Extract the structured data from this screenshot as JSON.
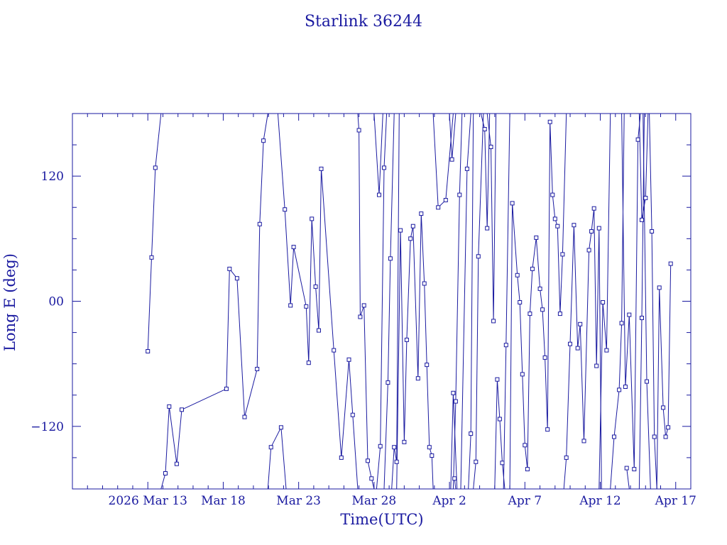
{
  "chart_data": {
    "type": "line",
    "title": "Starlink 36244",
    "xlabel": "Time(UTC)",
    "ylabel": "Long E (deg)",
    "x_tick_labels": [
      "2026 Mar 13",
      "Mar 18",
      "Mar 23",
      "Mar 28",
      "Apr  2",
      "Apr  7",
      "Apr 12",
      "Apr 17"
    ],
    "x_tick_dates": [
      "2026-03-13",
      "2026-03-18",
      "2026-03-23",
      "2026-03-28",
      "2026-04-02",
      "2026-04-07",
      "2026-04-12",
      "2026-04-17"
    ],
    "xlim": [
      "2026-03-08T00:00",
      "2026-04-18T00:00"
    ],
    "y_tick_labels": [
      "120",
      "00",
      "−120"
    ],
    "y_tick_values": [
      120,
      0,
      -120
    ],
    "ylim": [
      -180,
      180
    ],
    "grid": false,
    "markers": "square",
    "series_color": "#1a1aa0",
    "series": [
      {
        "values": [
          [
            "2026-03-13T00:00",
            -48
          ],
          [
            "2026-03-13T06:00",
            42
          ],
          [
            "2026-03-13T12:00",
            128
          ],
          [
            "2026-03-13T21:00",
            180
          ],
          null,
          [
            "2026-03-13T21:00",
            -180
          ],
          [
            "2026-03-14T04:00",
            -165
          ],
          [
            "2026-03-14T10:00",
            -101
          ],
          [
            "2026-03-14T22:00",
            -156
          ],
          [
            "2026-03-15T06:00",
            -104
          ],
          [
            "2026-03-18T05:00",
            -84
          ],
          [
            "2026-03-18T10:00",
            31
          ],
          [
            "2026-03-18T22:00",
            22
          ],
          [
            "2026-03-19T10:00",
            -111
          ],
          [
            "2026-03-20T06:00",
            -65
          ],
          [
            "2026-03-20T10:00",
            74
          ],
          [
            "2026-03-20T16:00",
            154
          ],
          [
            "2026-03-20T23:00",
            180
          ],
          null,
          [
            "2026-03-20T23:00",
            -180
          ],
          [
            "2026-03-21T04:00",
            -140
          ],
          [
            "2026-03-21T20:00",
            -121
          ],
          [
            "2026-03-22T04:00",
            -180
          ],
          null,
          [
            "2026-03-21T15:00",
            180
          ],
          [
            "2026-03-22T02:00",
            88
          ],
          [
            "2026-03-22T11:00",
            -4
          ],
          [
            "2026-03-22T16:00",
            52
          ],
          [
            "2026-03-23T12:00",
            -5
          ],
          [
            "2026-03-23T16:00",
            -59
          ],
          [
            "2026-03-23T21:00",
            79
          ],
          [
            "2026-03-24T03:00",
            14
          ],
          [
            "2026-03-24T08:00",
            -28
          ],
          [
            "2026-03-24T12:00",
            127
          ],
          [
            "2026-03-25T08:00",
            -47
          ],
          [
            "2026-03-25T20:00",
            -150
          ],
          [
            "2026-03-26T08:00",
            -56
          ],
          [
            "2026-03-26T14:00",
            -109
          ],
          [
            "2026-03-26T22:00",
            -180
          ],
          null,
          [
            "2026-03-26T22:00",
            180
          ],
          [
            "2026-03-27T00:00",
            164
          ],
          [
            "2026-03-27T02:00",
            -15
          ],
          [
            "2026-03-27T08:00",
            -4
          ],
          [
            "2026-03-27T14:00",
            -153
          ],
          [
            "2026-03-27T20:00",
            -170
          ],
          [
            "2026-03-28T00:00",
            -180
          ],
          null,
          [
            "2026-03-28T00:00",
            180
          ],
          [
            "2026-03-28T08:00",
            102
          ],
          [
            "2026-03-28T14:00",
            180
          ],
          null,
          [
            "2026-03-28T04:00",
            -180
          ],
          [
            "2026-03-28T10:00",
            -139
          ],
          [
            "2026-03-28T16:00",
            128
          ],
          [
            "2026-03-28T20:00",
            180
          ],
          null,
          [
            "2026-03-28T16:00",
            -180
          ],
          [
            "2026-03-28T22:00",
            -78
          ],
          [
            "2026-03-29T02:00",
            41
          ],
          [
            "2026-03-29T08:00",
            180
          ],
          null,
          [
            "2026-03-29T04:00",
            -180
          ],
          [
            "2026-03-29T08:00",
            -140
          ],
          [
            "2026-03-29T12:00",
            -154
          ],
          [
            "2026-03-29T16:00",
            180
          ],
          null,
          [
            "2026-03-29T12:00",
            -180
          ],
          [
            "2026-03-29T18:00",
            68
          ],
          [
            "2026-03-30T00:00",
            -135
          ],
          [
            "2026-03-30T04:00",
            -37
          ],
          [
            "2026-03-30T10:00",
            60
          ],
          [
            "2026-03-30T14:00",
            72
          ],
          [
            "2026-03-30T22:00",
            -74
          ],
          [
            "2026-03-31T03:00",
            84
          ],
          [
            "2026-03-31T08:00",
            17
          ],
          [
            "2026-03-31T12:00",
            -61
          ],
          [
            "2026-03-31T16:00",
            -140
          ],
          [
            "2026-03-31T20:00",
            -148
          ],
          [
            "2026-03-31T22:00",
            -180
          ],
          null,
          [
            "2026-03-31T22:00",
            180
          ],
          [
            "2026-04-01T06:00",
            90
          ],
          [
            "2026-04-01T18:00",
            97
          ],
          [
            "2026-04-02T06:00",
            180
          ],
          null,
          [
            "2026-04-02T02:00",
            -180
          ],
          [
            "2026-04-02T06:00",
            -88
          ],
          [
            "2026-04-02T12:00",
            -180
          ],
          null,
          [
            "2026-04-02T08:00",
            -170
          ],
          [
            "2026-04-02T10:00",
            -180
          ],
          null,
          [
            "2026-04-02T00:00",
            180
          ],
          [
            "2026-04-02T04:00",
            136
          ],
          [
            "2026-04-02T10:00",
            180
          ],
          null,
          [
            "2026-04-02T06:00",
            -180
          ],
          [
            "2026-04-02T10:00",
            -96
          ],
          [
            "2026-04-02T16:00",
            102
          ],
          [
            "2026-04-02T20:00",
            180
          ],
          null,
          [
            "2026-04-02T18:00",
            -180
          ],
          [
            "2026-04-03T04:00",
            127
          ],
          [
            "2026-04-03T10:00",
            180
          ],
          null,
          [
            "2026-04-03T06:00",
            -180
          ],
          [
            "2026-04-03T10:00",
            -127
          ],
          [
            "2026-04-03T14:00",
            180
          ],
          null,
          [
            "2026-04-03T14:00",
            -180
          ],
          [
            "2026-04-03T18:00",
            -154
          ],
          [
            "2026-04-03T22:00",
            43
          ],
          [
            "2026-04-04T06:00",
            180
          ],
          null,
          [
            "2026-04-04T02:00",
            180
          ],
          [
            "2026-04-04T08:00",
            165
          ],
          [
            "2026-04-04T12:00",
            70
          ],
          [
            "2026-04-04T16:00",
            180
          ],
          null,
          [
            "2026-04-04T12:00",
            180
          ],
          [
            "2026-04-04T18:00",
            148
          ],
          [
            "2026-04-04T22:00",
            -19
          ],
          [
            "2026-04-05T02:00",
            180
          ],
          null,
          [
            "2026-04-05T00:00",
            -180
          ],
          [
            "2026-04-05T04:00",
            -75
          ],
          [
            "2026-04-05T08:00",
            -113
          ],
          [
            "2026-04-05T12:00",
            -155
          ],
          [
            "2026-04-05T16:00",
            -180
          ],
          null,
          [
            "2026-04-05T14:00",
            -180
          ],
          [
            "2026-04-05T18:00",
            -42
          ],
          [
            "2026-04-06T00:00",
            180
          ],
          null,
          [
            "2026-04-06T00:00",
            -180
          ],
          [
            "2026-04-06T04:00",
            94
          ],
          [
            "2026-04-06T12:00",
            25
          ],
          [
            "2026-04-06T16:00",
            -1
          ],
          [
            "2026-04-06T20:00",
            -70
          ],
          [
            "2026-04-07T00:00",
            -138
          ],
          [
            "2026-04-07T04:00",
            -161
          ],
          [
            "2026-04-07T08:00",
            -12
          ],
          [
            "2026-04-07T12:00",
            31
          ],
          [
            "2026-04-07T18:00",
            61
          ],
          [
            "2026-04-08T00:00",
            12
          ],
          [
            "2026-04-08T04:00",
            -8
          ],
          [
            "2026-04-08T08:00",
            -54
          ],
          [
            "2026-04-08T12:00",
            -123
          ],
          [
            "2026-04-08T16:00",
            172
          ],
          [
            "2026-04-08T20:00",
            102
          ],
          [
            "2026-04-09T00:00",
            79
          ],
          [
            "2026-04-09T04:00",
            72
          ],
          [
            "2026-04-09T08:00",
            -12
          ],
          [
            "2026-04-09T12:00",
            45
          ],
          [
            "2026-04-09T18:00",
            180
          ],
          null,
          [
            "2026-04-09T14:00",
            -180
          ],
          [
            "2026-04-09T18:00",
            -150
          ],
          [
            "2026-04-10T00:00",
            -41
          ],
          [
            "2026-04-10T06:00",
            73
          ],
          [
            "2026-04-10T12:00",
            -45
          ],
          [
            "2026-04-10T16:00",
            -22
          ],
          [
            "2026-04-10T22:00",
            -134
          ],
          [
            "2026-04-11T06:00",
            49
          ],
          [
            "2026-04-11T10:00",
            67
          ],
          [
            "2026-04-11T14:00",
            89
          ],
          [
            "2026-04-11T18:00",
            -62
          ],
          [
            "2026-04-11T22:00",
            70
          ],
          [
            "2026-04-12T02:00",
            -180
          ],
          null,
          [
            "2026-04-11T22:00",
            -180
          ],
          [
            "2026-04-12T04:00",
            -1
          ],
          [
            "2026-04-12T10:00",
            -47
          ],
          [
            "2026-04-12T16:00",
            180
          ],
          null,
          [
            "2026-04-12T16:00",
            -180
          ],
          [
            "2026-04-12T22:00",
            -130
          ],
          [
            "2026-04-13T06:00",
            -85
          ],
          [
            "2026-04-13T10:00",
            -21
          ],
          [
            "2026-04-13T14:00",
            180
          ],
          null,
          [
            "2026-04-13T18:00",
            -160
          ],
          [
            "2026-04-13T22:00",
            -180
          ],
          null,
          [
            "2026-04-13T10:00",
            180
          ],
          [
            "2026-04-13T16:00",
            -82
          ],
          [
            "2026-04-13T22:00",
            -13
          ],
          [
            "2026-04-14T06:00",
            -161
          ],
          [
            "2026-04-14T12:00",
            155
          ],
          [
            "2026-04-14T16:00",
            180
          ],
          null,
          [
            "2026-04-14T14:00",
            -180
          ],
          [
            "2026-04-14T18:00",
            -16
          ],
          [
            "2026-04-14T22:00",
            180
          ],
          null,
          [
            "2026-04-14T14:00",
            180
          ],
          [
            "2026-04-14T18:00",
            78
          ],
          [
            "2026-04-15T00:00",
            99
          ],
          [
            "2026-04-15T04:00",
            180
          ],
          null,
          [
            "2026-04-14T20:00",
            180
          ],
          [
            "2026-04-15T02:00",
            -77
          ],
          [
            "2026-04-15T08:00",
            -180
          ],
          null,
          [
            "2026-04-15T06:00",
            180
          ],
          [
            "2026-04-15T10:00",
            67
          ],
          [
            "2026-04-15T14:00",
            -130
          ],
          [
            "2026-04-15T18:00",
            -180
          ],
          null,
          [
            "2026-04-15T18:00",
            -180
          ],
          [
            "2026-04-15T22:00",
            13
          ],
          [
            "2026-04-16T04:00",
            -102
          ],
          [
            "2026-04-16T08:00",
            -130
          ],
          [
            "2026-04-16T12:00",
            -121
          ],
          [
            "2026-04-16T16:00",
            36
          ]
        ]
      }
    ]
  }
}
